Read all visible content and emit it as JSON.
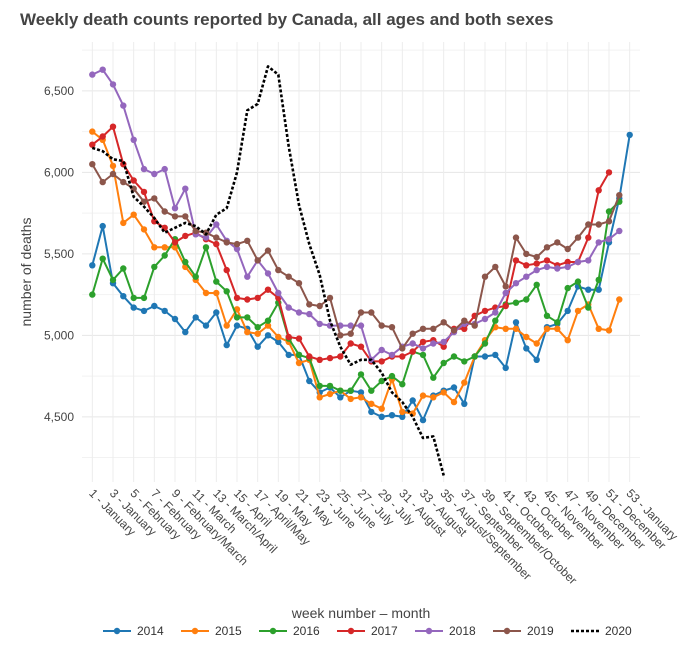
{
  "chart_data": {
    "type": "line",
    "title": "Weekly death counts reported by Canada, all ages and both sexes",
    "xlabel": "week number – month",
    "ylabel": "number of deaths",
    "xlim": [
      0,
      54
    ],
    "ylim": [
      4100,
      6800
    ],
    "grid": true,
    "legend_position": "bottom",
    "y_ticks": [
      {
        "value": 4500,
        "label": "4,500"
      },
      {
        "value": 5000,
        "label": "5,000"
      },
      {
        "value": 5500,
        "label": "5,500"
      },
      {
        "value": 6000,
        "label": "6,000"
      },
      {
        "value": 6500,
        "label": "6,500"
      }
    ],
    "x_ticks": [
      {
        "week": 1,
        "label": "1 - January"
      },
      {
        "week": 3,
        "label": "3 - January"
      },
      {
        "week": 5,
        "label": "5 - February"
      },
      {
        "week": 7,
        "label": "7 - February"
      },
      {
        "week": 9,
        "label": "9 - February/March"
      },
      {
        "week": 11,
        "label": "11 - March"
      },
      {
        "week": 13,
        "label": "13 - March/April"
      },
      {
        "week": 15,
        "label": "15 - April"
      },
      {
        "week": 17,
        "label": "17 - April/May"
      },
      {
        "week": 19,
        "label": "19 - May"
      },
      {
        "week": 21,
        "label": "21 - May"
      },
      {
        "week": 23,
        "label": "23 - June"
      },
      {
        "week": 25,
        "label": "25 - June"
      },
      {
        "week": 27,
        "label": "27 - July"
      },
      {
        "week": 29,
        "label": "29 - July"
      },
      {
        "week": 31,
        "label": "31 - August"
      },
      {
        "week": 33,
        "label": "33 - August"
      },
      {
        "week": 35,
        "label": "35 - August/September"
      },
      {
        "week": 37,
        "label": "37 - September"
      },
      {
        "week": 39,
        "label": "39 - September/October"
      },
      {
        "week": 41,
        "label": "41 - October"
      },
      {
        "week": 43,
        "label": "43 - October"
      },
      {
        "week": 45,
        "label": "45 - November"
      },
      {
        "week": 47,
        "label": "47 - November"
      },
      {
        "week": 49,
        "label": "49 - December"
      },
      {
        "week": 51,
        "label": "51 - December"
      },
      {
        "week": 53,
        "label": "53 - January"
      }
    ],
    "series": [
      {
        "name": "2014",
        "color": "#1f77b4",
        "dashed": false,
        "values": [
          5430,
          5670,
          5320,
          5240,
          5170,
          5150,
          5180,
          5150,
          5100,
          5020,
          5110,
          5060,
          5140,
          4940,
          5060,
          5040,
          4930,
          5000,
          4960,
          4880,
          4880,
          4720,
          4650,
          4680,
          4620,
          4660,
          4650,
          4530,
          4500,
          4510,
          4500,
          4600,
          4480,
          4630,
          4660,
          4680,
          4580,
          4870,
          4870,
          4880,
          4800,
          5080,
          4920,
          4850,
          5050,
          5070,
          5150,
          5300,
          5280,
          5280,
          5570,
          5840,
          6230
        ]
      },
      {
        "name": "2015",
        "color": "#ff7f0e",
        "dashed": false,
        "values": [
          6250,
          6200,
          6040,
          5690,
          5740,
          5650,
          5540,
          5540,
          5540,
          5420,
          5340,
          5260,
          5260,
          5060,
          5160,
          5020,
          5010,
          5060,
          4990,
          4960,
          4830,
          4850,
          4620,
          4640,
          4660,
          4610,
          4620,
          4580,
          4550,
          4730,
          4530,
          4520,
          4630,
          4620,
          4650,
          4590,
          4710,
          4870,
          4970,
          5050,
          5040,
          5040,
          4990,
          4950,
          5040,
          5040,
          4970,
          5150,
          5190,
          5040,
          5030,
          5220
        ]
      },
      {
        "name": "2016",
        "color": "#2ca02c",
        "dashed": false,
        "values": [
          5250,
          5470,
          5340,
          5410,
          5230,
          5230,
          5420,
          5490,
          5590,
          5450,
          5360,
          5540,
          5330,
          5270,
          5110,
          5110,
          5050,
          5090,
          5200,
          4980,
          4880,
          4860,
          4690,
          4690,
          4660,
          4660,
          4760,
          4660,
          4720,
          4750,
          4700,
          4900,
          4880,
          4740,
          4830,
          4870,
          4840,
          4870,
          4950,
          5090,
          5190,
          5200,
          5220,
          5310,
          5120,
          5080,
          5290,
          5330,
          5170,
          5340,
          5760,
          5820
        ]
      },
      {
        "name": "2017",
        "color": "#d62728",
        "dashed": false,
        "values": [
          6170,
          6220,
          6280,
          6050,
          5950,
          5880,
          5700,
          5660,
          5570,
          5610,
          5630,
          5590,
          5560,
          5400,
          5230,
          5220,
          5230,
          5280,
          5230,
          4990,
          4980,
          4870,
          4850,
          4860,
          4870,
          4950,
          4930,
          4840,
          4840,
          4870,
          4870,
          4900,
          4960,
          4970,
          4930,
          5040,
          5040,
          5120,
          5150,
          5170,
          5180,
          5460,
          5430,
          5440,
          5460,
          5430,
          5450,
          5450,
          5600,
          5890,
          6000
        ]
      },
      {
        "name": "2018",
        "color": "#9467bd",
        "dashed": false,
        "values": [
          6600,
          6630,
          6540,
          6410,
          6200,
          6020,
          5990,
          6020,
          5780,
          5900,
          5620,
          5600,
          5680,
          5580,
          5530,
          5360,
          5460,
          5380,
          5260,
          5170,
          5140,
          5130,
          5070,
          5060,
          5060,
          5060,
          5060,
          4850,
          4910,
          4880,
          4930,
          4950,
          4920,
          4950,
          4960,
          5020,
          5070,
          5070,
          5100,
          5140,
          5260,
          5320,
          5360,
          5400,
          5420,
          5410,
          5420,
          5450,
          5460,
          5570,
          5590,
          5640
        ]
      },
      {
        "name": "2019",
        "color": "#8c564b",
        "dashed": false,
        "values": [
          6050,
          5940,
          5990,
          5940,
          5900,
          5820,
          5840,
          5760,
          5730,
          5730,
          5640,
          5630,
          5600,
          5570,
          5560,
          5580,
          5460,
          5520,
          5400,
          5360,
          5320,
          5190,
          5180,
          5230,
          5000,
          5010,
          5140,
          5140,
          5060,
          5050,
          4920,
          5010,
          5040,
          5040,
          5080,
          5030,
          5090,
          5060,
          5360,
          5420,
          5300,
          5600,
          5500,
          5480,
          5540,
          5570,
          5530,
          5600,
          5680,
          5680,
          5700,
          5860
        ]
      },
      {
        "name": "2020",
        "color": "#000000",
        "dashed": true,
        "values": [
          6150,
          6130,
          6080,
          6070,
          5850,
          5790,
          5720,
          5630,
          5660,
          5690,
          5670,
          5620,
          5740,
          5780,
          6000,
          6380,
          6420,
          6650,
          6600,
          6160,
          5800,
          5560,
          5370,
          5090,
          4930,
          4820,
          4850,
          4850,
          4770,
          4650,
          4590,
          4500,
          4370,
          4380,
          4140
        ]
      }
    ]
  }
}
